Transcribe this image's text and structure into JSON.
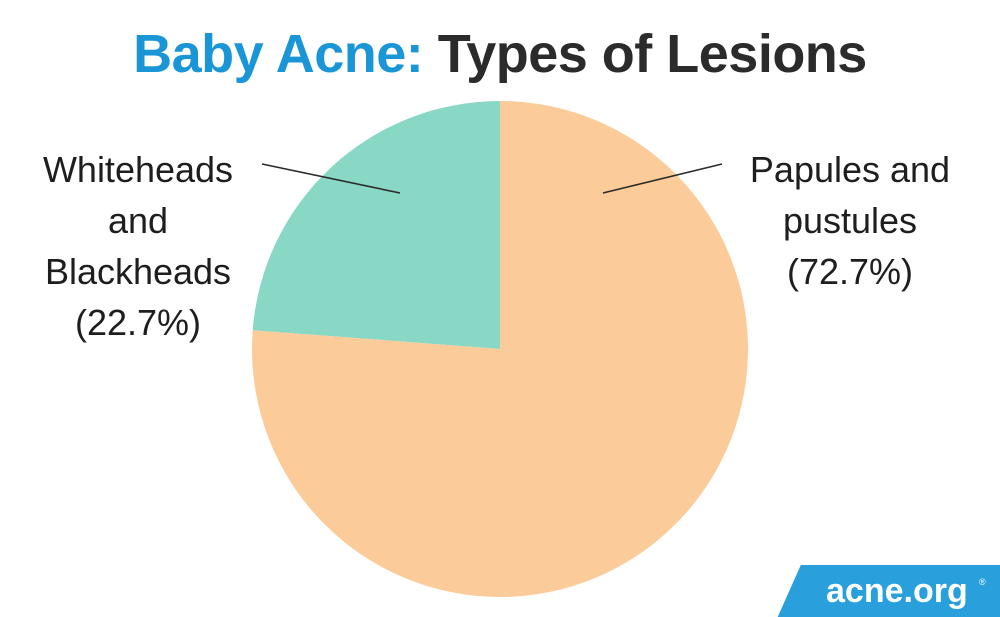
{
  "title": {
    "prefix": "Baby Acne:",
    "rest": " Types of Lesions"
  },
  "colors": {
    "title_prefix": "#1a95d6",
    "title_rest": "#2b2b2b",
    "logo_background": "#29a0dc"
  },
  "chart_data": {
    "type": "pie",
    "title": "Baby Acne: Types of Lesions",
    "slices": [
      {
        "label": "Whiteheads\nand\nBlackheads\n(22.7%)",
        "value": 22.7,
        "color": "#88d8c5"
      },
      {
        "label": "Papules and\npustules\n(72.7%)",
        "value": 72.7,
        "color": "#fccb9a"
      }
    ],
    "legend": "none"
  },
  "logo": {
    "text": "acne.org",
    "mark": "®"
  }
}
